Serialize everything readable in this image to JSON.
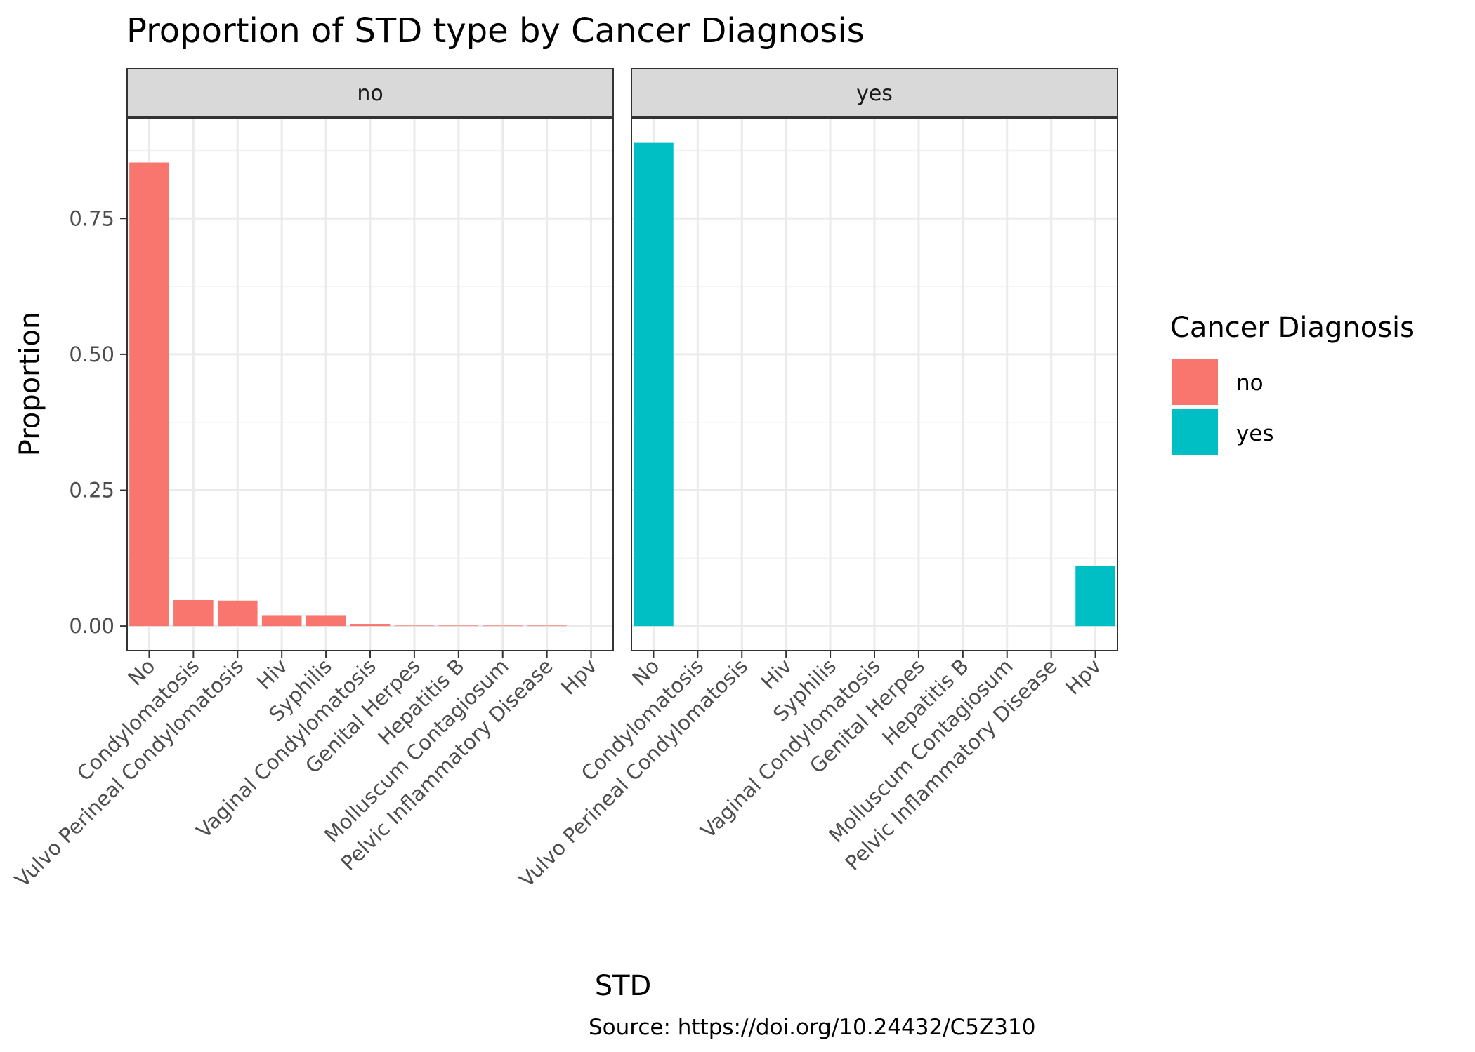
{
  "chart_data": {
    "type": "bar",
    "title": "Proportion of STD type by Cancer Diagnosis",
    "xlabel": "STD",
    "ylabel": "Proportion",
    "caption": "Source: https://doi.org/10.24432/C5Z310",
    "ylim": [
      -0.045,
      0.935
    ],
    "yticks": [
      0.0,
      0.25,
      0.5,
      0.75
    ],
    "ytick_labels": [
      "0.00",
      "0.25",
      "0.50",
      "0.75"
    ],
    "categories": [
      "No",
      "Condylomatosis",
      "Vulvo Perineal Condylomatosis",
      "Hiv",
      "Syphilis",
      "Vaginal Condylomatosis",
      "Genital Herpes",
      "Hepatitis B",
      "Molluscum Contagiosum",
      "Pelvic Inflammatory Disease",
      "Hpv"
    ],
    "legend": {
      "title": "Cancer Diagnosis",
      "position": "right",
      "entries": [
        {
          "label": "no",
          "color": "#F8766D"
        },
        {
          "label": "yes",
          "color": "#00BFC4"
        }
      ]
    },
    "facets": [
      {
        "label": "no",
        "color": "#F8766D",
        "values": [
          0.853,
          0.048,
          0.047,
          0.019,
          0.019,
          0.004,
          0.001,
          0.001,
          0.001,
          0.001,
          0.0
        ]
      },
      {
        "label": "yes",
        "color": "#00BFC4",
        "values": [
          0.889,
          0.0,
          0.0,
          0.0,
          0.0,
          0.0,
          0.0,
          0.0,
          0.0,
          0.0,
          0.111
        ]
      }
    ]
  }
}
